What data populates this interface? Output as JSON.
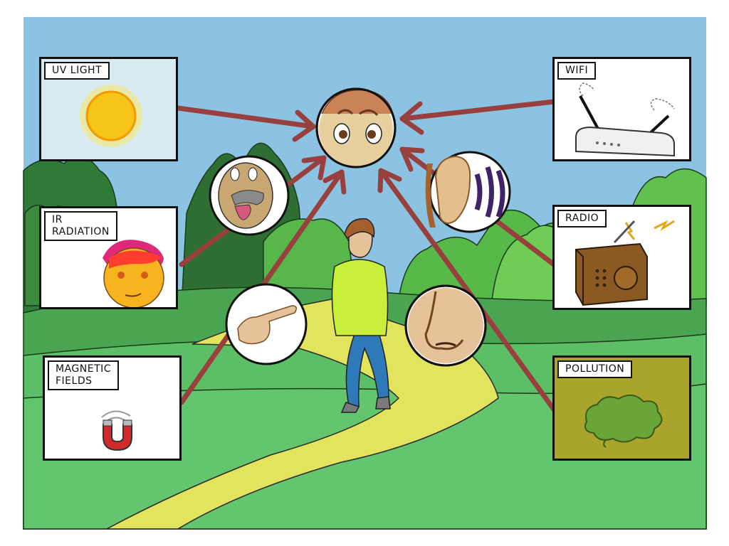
{
  "labels": {
    "uv_light": "UV LIGHT",
    "wifi": "WIFI",
    "ir_radiation": "IR\nRADIATION",
    "radio": "RADIO",
    "magnetic_fields": "MAGNETIC\nFIELDS",
    "pollution": "POLLUTION"
  },
  "colors": {
    "sky": "#8cc3e3",
    "arrow": "#98403e",
    "path": "#e2e45e",
    "grass_light": "#63c56e",
    "grass_dark": "#4aa552",
    "pollution_panel": "#a9a42c"
  },
  "icons": [
    "sun-icon",
    "router-icon",
    "heat-face-icon",
    "radio-icon",
    "magnet-icon",
    "smoke-cloud-icon",
    "brain-head-icon",
    "tongue-icon",
    "ear-icon",
    "finger-icon",
    "nose-icon",
    "walking-man"
  ]
}
